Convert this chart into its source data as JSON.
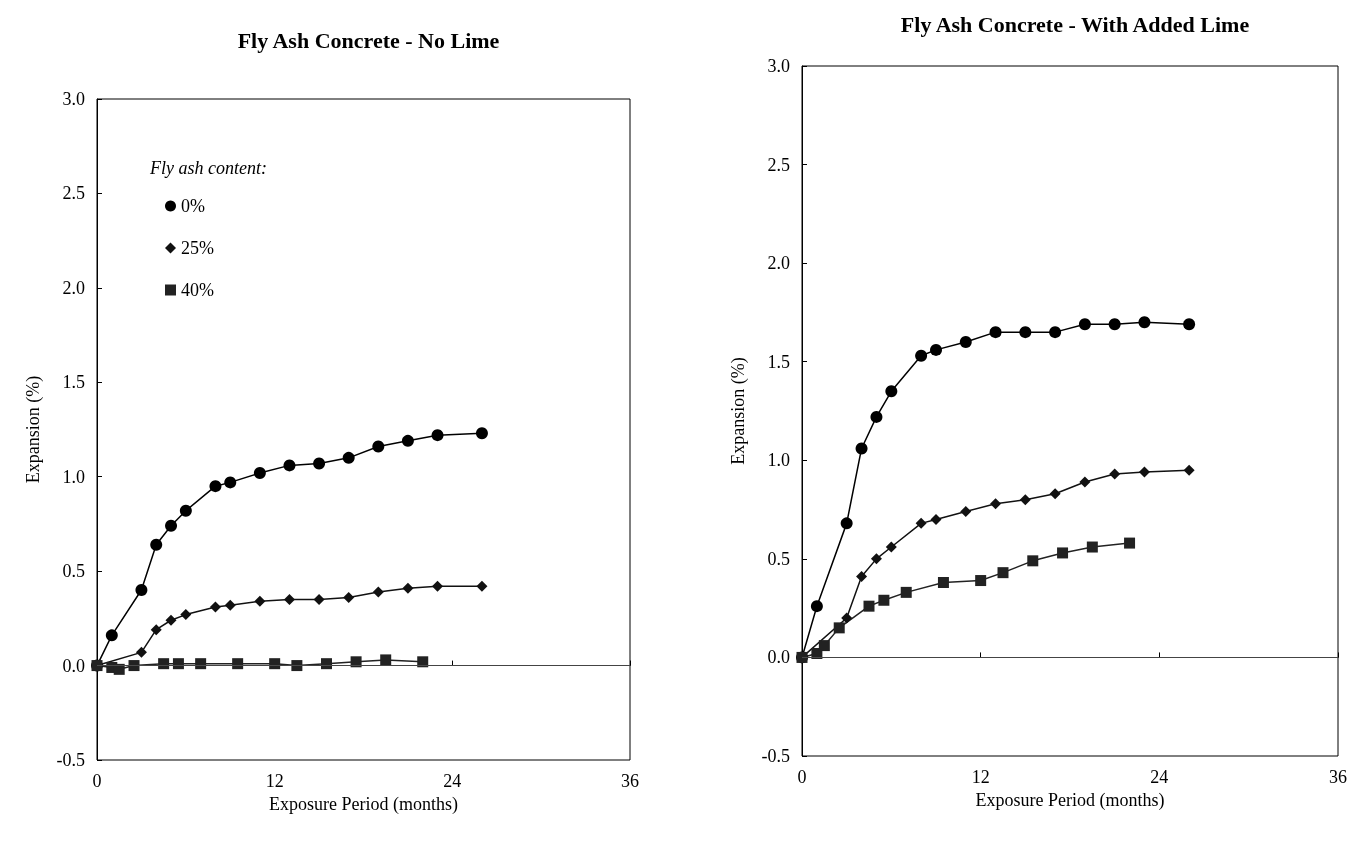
{
  "chart_data": [
    {
      "type": "line",
      "title": "Fly Ash Concrete - No Lime",
      "xlabel": "Exposure Period (months)",
      "ylabel": "Expansion (%)",
      "legend_title": "Fly ash content:",
      "legend": "top left",
      "xlim": [
        0,
        36
      ],
      "xticks": [
        0,
        12,
        24,
        36
      ],
      "ylim": [
        -0.5,
        3.0
      ],
      "yticks": [
        -0.5,
        {
          "value": 0,
          "label": "0.0"
        },
        0.5,
        {
          "value": 1,
          "label": "1.0"
        },
        1.5,
        {
          "value": 2,
          "label": "2.0"
        },
        2.5,
        {
          "value": 3,
          "label": "3.0"
        }
      ],
      "ref_lines": [
        {
          "axis": "y",
          "value": 0,
          "color": "#555555"
        }
      ],
      "series": [
        {
          "name": "0%",
          "color": "#000000",
          "marker": "circle",
          "x": [
            0,
            1,
            3,
            4,
            5,
            6,
            8,
            9,
            11,
            13,
            15,
            17,
            19,
            21,
            23,
            26
          ],
          "values": [
            0,
            0.16,
            0.4,
            0.64,
            0.74,
            0.82,
            0.95,
            0.97,
            1.02,
            1.06,
            1.07,
            1.1,
            1.16,
            1.19,
            1.22,
            1.23
          ]
        },
        {
          "name": "25%",
          "color": "#111111",
          "marker": "diamond",
          "x": [
            0,
            3,
            4,
            5,
            6,
            8,
            9,
            11,
            13,
            15,
            17,
            19,
            21,
            23,
            26
          ],
          "values": [
            0,
            0.07,
            0.19,
            0.24,
            0.27,
            0.31,
            0.32,
            0.34,
            0.35,
            0.35,
            0.36,
            0.39,
            0.41,
            0.42,
            0.42
          ]
        },
        {
          "name": "40%",
          "color": "#222222",
          "marker": "square",
          "x": [
            0,
            1,
            1.5,
            2.5,
            4.5,
            5.5,
            7,
            9.5,
            12,
            13.5,
            15.5,
            17.5,
            19.5,
            22
          ],
          "values": [
            0,
            -0.01,
            -0.02,
            0.0,
            0.01,
            0.01,
            0.01,
            0.01,
            0.01,
            0.0,
            0.01,
            0.02,
            0.03,
            0.02
          ]
        }
      ]
    },
    {
      "type": "line",
      "title": "Fly Ash Concrete - With Added Lime",
      "xlabel": "Exposure Period (months)",
      "ylabel": "Expansion (%)",
      "xlim": [
        0,
        36
      ],
      "xticks": [
        0,
        12,
        24,
        36
      ],
      "ylim": [
        -0.5,
        3.0
      ],
      "yticks": [
        -0.5,
        {
          "value": 0,
          "label": "0.0"
        },
        0.5,
        {
          "value": 1,
          "label": "1.0"
        },
        1.5,
        {
          "value": 2,
          "label": "2.0"
        },
        2.5,
        {
          "value": 3,
          "label": "3.0"
        }
      ],
      "ref_lines": [
        {
          "axis": "y",
          "value": 0,
          "color": "#555555"
        }
      ],
      "series": [
        {
          "color": "#000000",
          "marker": "circle",
          "x": [
            0,
            1,
            3,
            4,
            5,
            6,
            8,
            9,
            11,
            13,
            15,
            17,
            19,
            21,
            23,
            26
          ],
          "values": [
            0,
            0.26,
            0.68,
            1.06,
            1.22,
            1.35,
            1.53,
            1.56,
            1.6,
            1.65,
            1.65,
            1.65,
            1.69,
            1.69,
            1.7,
            1.69
          ]
        },
        {
          "color": "#111111",
          "marker": "diamond",
          "x": [
            0,
            3,
            4,
            5,
            6,
            8,
            9,
            11,
            13,
            15,
            17,
            19,
            21,
            23,
            26
          ],
          "values": [
            0,
            0.2,
            0.41,
            0.5,
            0.56,
            0.68,
            0.7,
            0.74,
            0.78,
            0.8,
            0.83,
            0.89,
            0.93,
            0.94,
            0.95
          ]
        },
        {
          "color": "#222222",
          "marker": "square",
          "x": [
            0,
            1,
            1.5,
            2.5,
            4.5,
            5.5,
            7,
            9.5,
            12,
            13.5,
            15.5,
            17.5,
            19.5,
            22
          ],
          "values": [
            0,
            0.02,
            0.06,
            0.15,
            0.26,
            0.29,
            0.33,
            0.38,
            0.39,
            0.43,
            0.49,
            0.53,
            0.56,
            0.58
          ]
        }
      ]
    }
  ]
}
